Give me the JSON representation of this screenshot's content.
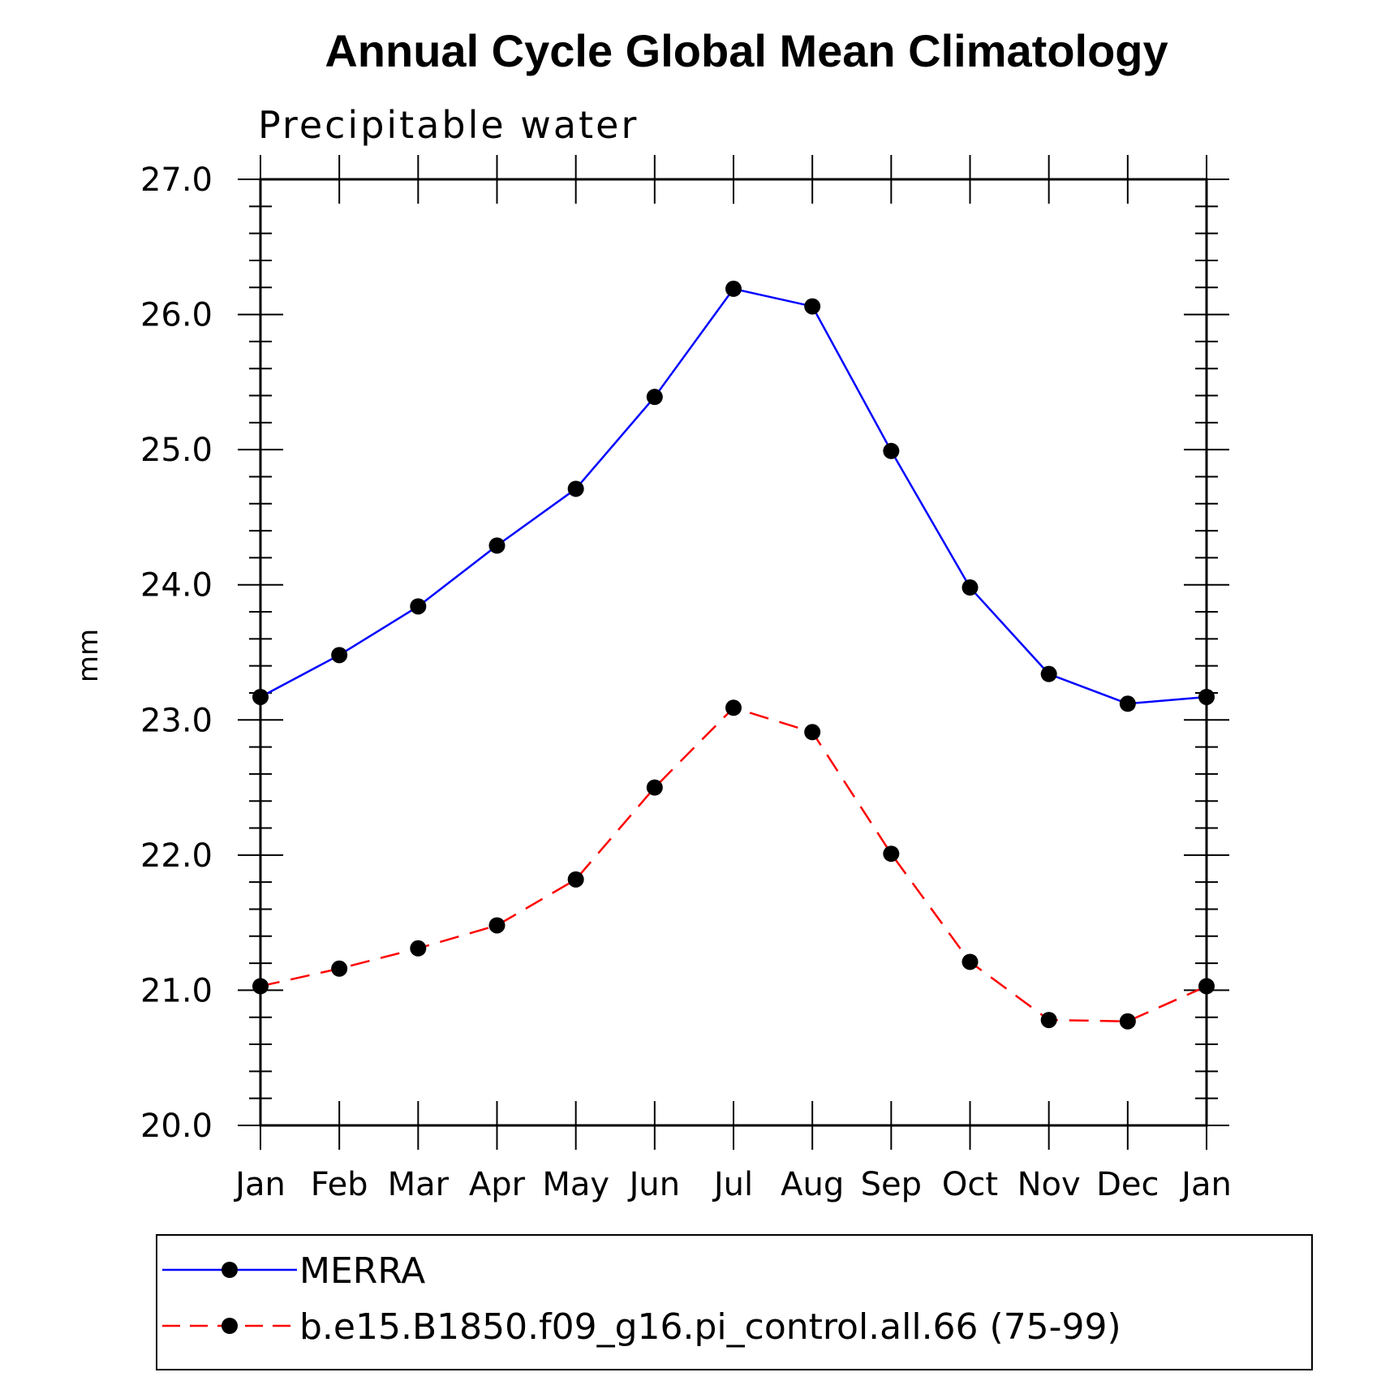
{
  "chart_data": {
    "type": "line",
    "title": "Annual Cycle Global Mean Climatology",
    "subtitle": "Precipitable water",
    "ylabel": "mm",
    "xlabel": "",
    "ylim": [
      20.0,
      27.0
    ],
    "yticks": [
      "20.0",
      "21.0",
      "22.0",
      "23.0",
      "24.0",
      "25.0",
      "26.0",
      "27.0"
    ],
    "categories": [
      "Jan",
      "Feb",
      "Mar",
      "Apr",
      "May",
      "Jun",
      "Jul",
      "Aug",
      "Sep",
      "Oct",
      "Nov",
      "Dec",
      "Jan"
    ],
    "series": [
      {
        "name": "MERRA",
        "color": "#0000ff",
        "dash": "solid",
        "values": [
          23.17,
          23.48,
          23.84,
          24.29,
          24.71,
          25.39,
          26.19,
          26.06,
          24.99,
          23.98,
          23.34,
          23.12,
          23.17
        ]
      },
      {
        "name": "b.e15.B1850.f09_g16.pi_control.all.66 (75-99)",
        "color": "#ff0000",
        "dash": "dashed",
        "values": [
          21.03,
          21.16,
          21.31,
          21.48,
          21.82,
          22.5,
          23.09,
          22.91,
          22.01,
          21.21,
          20.78,
          20.77,
          21.03
        ]
      }
    ],
    "legend_position": "bottom",
    "grid": false
  }
}
